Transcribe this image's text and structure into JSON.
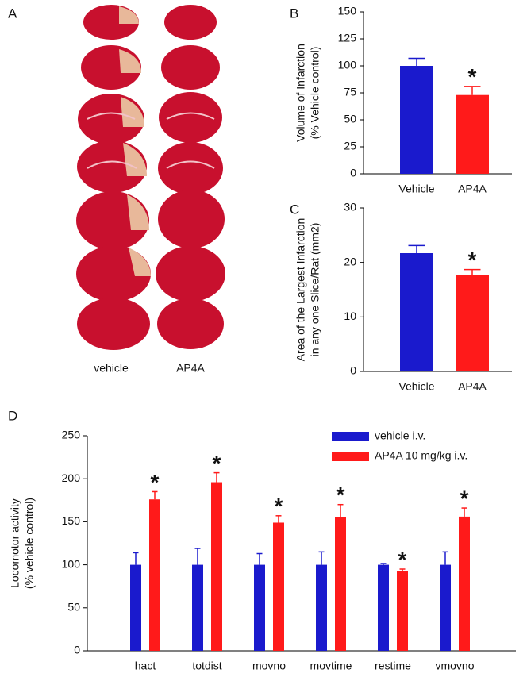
{
  "panel_a": {
    "label": "A",
    "columns": [
      "vehicle",
      "AP4A"
    ]
  },
  "chart_data": [
    {
      "type": "bar",
      "panel": "B",
      "ylabel": [
        "Volume of Infarction",
        "(% Vehicle control)"
      ],
      "categories": [
        "Vehicle",
        "AP4A"
      ],
      "values": [
        100,
        73
      ],
      "errors": [
        7,
        8
      ],
      "colors": [
        "#1a1acd",
        "#ff1a1a"
      ],
      "ylim": [
        0,
        150
      ],
      "yticks": [
        0,
        25,
        50,
        75,
        100,
        125,
        150
      ],
      "annotations": [
        {
          "text": "*",
          "category": "AP4A"
        }
      ]
    },
    {
      "type": "bar",
      "panel": "C",
      "ylabel": [
        "Area of the Largest Infarction",
        "in any one Slice/Rat (mm2)"
      ],
      "categories": [
        "Vehicle",
        "AP4A"
      ],
      "values": [
        21.7,
        17.7
      ],
      "errors": [
        1.4,
        1.0
      ],
      "colors": [
        "#1a1acd",
        "#ff1a1a"
      ],
      "ylim": [
        0,
        30
      ],
      "yticks": [
        0,
        10,
        20,
        30
      ],
      "annotations": [
        {
          "text": "*",
          "category": "AP4A"
        }
      ]
    },
    {
      "type": "grouped-bar",
      "panel": "D",
      "ylabel": [
        "Locomotor activity",
        "(% vehicle control)"
      ],
      "categories": [
        "hact",
        "totdist",
        "movno",
        "movtime",
        "restime",
        "vmovno"
      ],
      "series": [
        {
          "name": "vehicle i.v.",
          "color": "#1a1acd",
          "values": [
            100,
            100,
            100,
            100,
            100,
            100
          ],
          "errors": [
            14,
            19,
            13,
            15,
            1.5,
            15
          ]
        },
        {
          "name": "AP4A 10 mg/kg i.v.",
          "color": "#ff1a1a",
          "values": [
            176,
            196,
            149,
            155,
            93,
            156
          ],
          "errors": [
            9,
            11,
            8,
            15,
            2,
            10
          ]
        }
      ],
      "ylim": [
        0,
        250
      ],
      "yticks": [
        0,
        50,
        100,
        150,
        200,
        250
      ],
      "annotations": [
        {
          "text": "*",
          "category": "hact",
          "series": "AP4A 10 mg/kg i.v."
        },
        {
          "text": "*",
          "category": "totdist",
          "series": "AP4A 10 mg/kg i.v."
        },
        {
          "text": "*",
          "category": "movno",
          "series": "AP4A 10 mg/kg i.v."
        },
        {
          "text": "*",
          "category": "movtime",
          "series": "AP4A 10 mg/kg i.v."
        },
        {
          "text": "*",
          "category": "restime",
          "series": "AP4A 10 mg/kg i.v."
        },
        {
          "text": "*",
          "category": "vmovno",
          "series": "AP4A 10 mg/kg i.v."
        }
      ]
    }
  ]
}
